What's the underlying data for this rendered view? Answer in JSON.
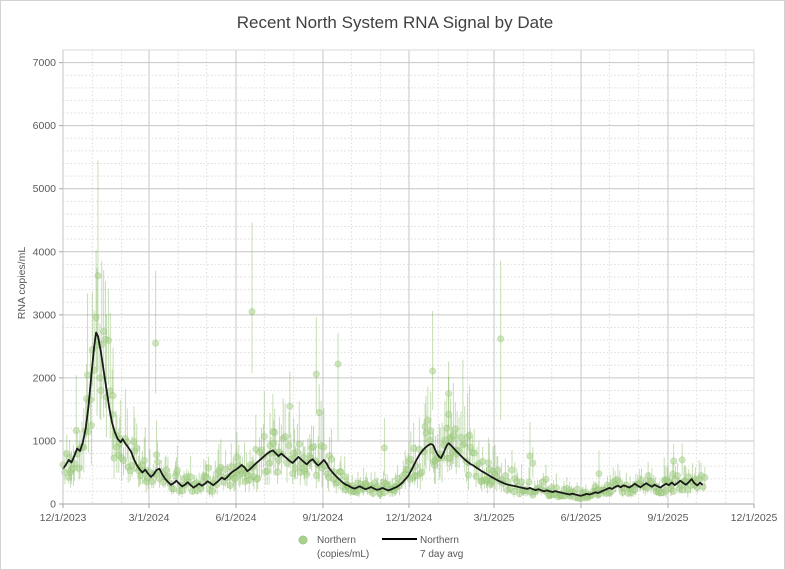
{
  "chart_data": {
    "type": "scatter",
    "title": "Recent North System RNA Signal by Date",
    "xlabel": "",
    "ylabel": "RNA copies/mL",
    "ylim": [
      0,
      7200
    ],
    "y_ticks": [
      "0",
      "1000",
      "2000",
      "3000",
      "4000",
      "5000",
      "6000",
      "7000"
    ],
    "y_tick_values": [
      0,
      1000,
      2000,
      3000,
      4000,
      5000,
      6000,
      7000
    ],
    "y_minor_step": 200,
    "grid": "on",
    "legend_position": "bottom-center",
    "x_range_days": 731,
    "x_start_date": "12/1/2023",
    "x_ticks": [
      "12/1/2023",
      "3/1/2024",
      "6/1/2024",
      "9/1/2024",
      "12/1/2024",
      "3/1/2025",
      "6/1/2025",
      "9/1/2025",
      "12/1/2025"
    ],
    "x_tick_days": [
      0,
      91,
      183,
      275,
      366,
      456,
      548,
      640,
      731
    ],
    "x_minor_days": [
      0,
      31,
      62,
      91,
      122,
      152,
      183,
      213,
      244,
      275,
      305,
      336,
      366,
      397,
      428,
      456,
      487,
      517,
      548,
      578,
      609,
      640,
      670,
      701,
      731
    ],
    "legend": [
      {
        "label_line1": "Northern",
        "label_line2": "(copies/mL)",
        "marker": "circle",
        "color": "#a9d18e"
      },
      {
        "label_line1": "Northern",
        "label_line2": "7 day avg",
        "marker": "line",
        "color": "#000000"
      }
    ],
    "colors": {
      "point_fill": "#a9d18e",
      "point_opacity": 0.55,
      "errorbar": "#70ad47",
      "errorbar_opacity": 0.4,
      "avg_line": "#1a1a1a",
      "major_grid": "#c6c6c6",
      "minor_grid": "#dcdcdc",
      "axis_line": "#a6a6a6",
      "title_text": "#404040",
      "tick_text": "#595959"
    },
    "series": [
      {
        "name": "Northern (copies/mL)",
        "kind": "scatter-with-errorbars",
        "sampling_note": "daily samples; band approx +/-40% around 7-day average",
        "gen": {
          "seed": 42,
          "end_day": 679,
          "noise_min": 0.6,
          "noise_span": 0.85,
          "bump_chance": 0.08,
          "bump_mult": 1.3,
          "bar_up_min": 0.28,
          "bar_up_span": 0.5,
          "bar_dn_min": 0.22,
          "bar_dn_span": 0.32,
          "tall_bar_chance": 0.045,
          "tall_bar_mult": 2.0,
          "v_max": 3750,
          "hi_max": 5450,
          "dot_radius": 3.2
        },
        "outliers_day_value_lo_hi": [
          [
            98,
            2550,
            1750,
            3700
          ],
          [
            200,
            3050,
            2080,
            4460
          ],
          [
            240,
            1550,
            1050,
            2100
          ],
          [
            268,
            2060,
            1450,
            2960
          ],
          [
            271,
            1450,
            1000,
            1900
          ],
          [
            291,
            2220,
            1000,
            2715
          ],
          [
            340,
            890,
            450,
            1360
          ],
          [
            391,
            2110,
            1490,
            3060
          ],
          [
            408,
            1750,
            1200,
            2260
          ],
          [
            463,
            2620,
            1330,
            3860
          ],
          [
            494,
            760,
            400,
            1300
          ],
          [
            497,
            650,
            420,
            900
          ],
          [
            567,
            480,
            250,
            850
          ],
          [
            646,
            680,
            400,
            950
          ],
          [
            655,
            700,
            450,
            960
          ]
        ]
      },
      {
        "name": "Northern 7 day avg",
        "kind": "line",
        "color": "#1a1a1a",
        "width": 1.8,
        "points_day_value": [
          [
            0,
            560
          ],
          [
            3,
            620
          ],
          [
            6,
            700
          ],
          [
            9,
            660
          ],
          [
            12,
            760
          ],
          [
            15,
            880
          ],
          [
            18,
            840
          ],
          [
            21,
            980
          ],
          [
            24,
            1200
          ],
          [
            27,
            1550
          ],
          [
            30,
            2050
          ],
          [
            33,
            2500
          ],
          [
            35,
            2720
          ],
          [
            37,
            2660
          ],
          [
            40,
            2420
          ],
          [
            43,
            2120
          ],
          [
            46,
            1820
          ],
          [
            49,
            1520
          ],
          [
            52,
            1280
          ],
          [
            55,
            1130
          ],
          [
            58,
            1030
          ],
          [
            61,
            980
          ],
          [
            63,
            1030
          ],
          [
            66,
            960
          ],
          [
            69,
            900
          ],
          [
            72,
            830
          ],
          [
            75,
            710
          ],
          [
            78,
            620
          ],
          [
            81,
            550
          ],
          [
            84,
            500
          ],
          [
            87,
            545
          ],
          [
            90,
            480
          ],
          [
            93,
            430
          ],
          [
            96,
            470
          ],
          [
            99,
            540
          ],
          [
            102,
            560
          ],
          [
            105,
            470
          ],
          [
            108,
            400
          ],
          [
            111,
            350
          ],
          [
            114,
            305
          ],
          [
            117,
            330
          ],
          [
            120,
            370
          ],
          [
            123,
            320
          ],
          [
            126,
            280
          ],
          [
            129,
            305
          ],
          [
            132,
            345
          ],
          [
            135,
            300
          ],
          [
            138,
            260
          ],
          [
            141,
            290
          ],
          [
            144,
            320
          ],
          [
            147,
            290
          ],
          [
            150,
            320
          ],
          [
            153,
            360
          ],
          [
            156,
            330
          ],
          [
            159,
            300
          ],
          [
            162,
            335
          ],
          [
            165,
            375
          ],
          [
            168,
            420
          ],
          [
            171,
            390
          ],
          [
            174,
            430
          ],
          [
            177,
            480
          ],
          [
            180,
            520
          ],
          [
            183,
            545
          ],
          [
            186,
            580
          ],
          [
            189,
            620
          ],
          [
            192,
            580
          ],
          [
            195,
            520
          ],
          [
            198,
            555
          ],
          [
            201,
            600
          ],
          [
            204,
            640
          ],
          [
            207,
            680
          ],
          [
            210,
            720
          ],
          [
            213,
            760
          ],
          [
            216,
            800
          ],
          [
            219,
            830
          ],
          [
            222,
            850
          ],
          [
            225,
            805
          ],
          [
            228,
            760
          ],
          [
            231,
            800
          ],
          [
            234,
            760
          ],
          [
            237,
            720
          ],
          [
            240,
            680
          ],
          [
            243,
            650
          ],
          [
            246,
            700
          ],
          [
            249,
            745
          ],
          [
            252,
            705
          ],
          [
            255,
            665
          ],
          [
            258,
            630
          ],
          [
            261,
            680
          ],
          [
            264,
            710
          ],
          [
            267,
            655
          ],
          [
            270,
            610
          ],
          [
            273,
            650
          ],
          [
            276,
            700
          ],
          [
            279,
            640
          ],
          [
            281,
            580
          ],
          [
            284,
            520
          ],
          [
            287,
            470
          ],
          [
            290,
            425
          ],
          [
            293,
            380
          ],
          [
            296,
            340
          ],
          [
            299,
            310
          ],
          [
            302,
            290
          ],
          [
            305,
            265
          ],
          [
            308,
            245
          ],
          [
            311,
            260
          ],
          [
            314,
            280
          ],
          [
            317,
            255
          ],
          [
            320,
            235
          ],
          [
            323,
            250
          ],
          [
            326,
            270
          ],
          [
            329,
            245
          ],
          [
            332,
            225
          ],
          [
            335,
            235
          ],
          [
            338,
            255
          ],
          [
            341,
            235
          ],
          [
            344,
            215
          ],
          [
            347,
            230
          ],
          [
            350,
            250
          ],
          [
            353,
            270
          ],
          [
            356,
            300
          ],
          [
            359,
            340
          ],
          [
            362,
            390
          ],
          [
            365,
            440
          ],
          [
            368,
            520
          ],
          [
            371,
            610
          ],
          [
            374,
            700
          ],
          [
            377,
            780
          ],
          [
            380,
            840
          ],
          [
            383,
            890
          ],
          [
            386,
            930
          ],
          [
            388,
            945
          ],
          [
            390,
            950
          ],
          [
            392,
            925
          ],
          [
            394,
            850
          ],
          [
            396,
            790
          ],
          [
            398,
            750
          ],
          [
            400,
            730
          ],
          [
            402,
            790
          ],
          [
            404,
            860
          ],
          [
            406,
            930
          ],
          [
            408,
            965
          ],
          [
            410,
            935
          ],
          [
            413,
            890
          ],
          [
            416,
            840
          ],
          [
            419,
            795
          ],
          [
            422,
            750
          ],
          [
            425,
            705
          ],
          [
            428,
            670
          ],
          [
            431,
            635
          ],
          [
            434,
            610
          ],
          [
            437,
            580
          ],
          [
            440,
            550
          ],
          [
            443,
            520
          ],
          [
            446,
            495
          ],
          [
            449,
            470
          ],
          [
            452,
            440
          ],
          [
            455,
            415
          ],
          [
            458,
            390
          ],
          [
            461,
            365
          ],
          [
            464,
            345
          ],
          [
            467,
            325
          ],
          [
            470,
            310
          ],
          [
            473,
            300
          ],
          [
            476,
            290
          ],
          [
            479,
            280
          ],
          [
            482,
            270
          ],
          [
            485,
            260
          ],
          [
            488,
            250
          ],
          [
            491,
            240
          ],
          [
            494,
            255
          ],
          [
            497,
            235
          ],
          [
            500,
            220
          ],
          [
            503,
            235
          ],
          [
            506,
            215
          ],
          [
            509,
            200
          ],
          [
            512,
            215
          ],
          [
            515,
            200
          ],
          [
            518,
            190
          ],
          [
            521,
            205
          ],
          [
            524,
            190
          ],
          [
            527,
            180
          ],
          [
            530,
            170
          ],
          [
            533,
            160
          ],
          [
            536,
            150
          ],
          [
            539,
            165
          ],
          [
            542,
            150
          ],
          [
            545,
            140
          ],
          [
            548,
            130
          ],
          [
            551,
            145
          ],
          [
            554,
            160
          ],
          [
            557,
            150
          ],
          [
            560,
            165
          ],
          [
            563,
            185
          ],
          [
            566,
            175
          ],
          [
            569,
            195
          ],
          [
            572,
            215
          ],
          [
            575,
            235
          ],
          [
            578,
            255
          ],
          [
            581,
            240
          ],
          [
            584,
            270
          ],
          [
            587,
            290
          ],
          [
            590,
            265
          ],
          [
            593,
            295
          ],
          [
            596,
            280
          ],
          [
            599,
            260
          ],
          [
            602,
            290
          ],
          [
            605,
            320
          ],
          [
            608,
            290
          ],
          [
            611,
            265
          ],
          [
            614,
            300
          ],
          [
            617,
            330
          ],
          [
            620,
            300
          ],
          [
            623,
            275
          ],
          [
            626,
            305
          ],
          [
            629,
            280
          ],
          [
            632,
            260
          ],
          [
            635,
            295
          ],
          [
            638,
            320
          ],
          [
            641,
            300
          ],
          [
            644,
            340
          ],
          [
            647,
            300
          ],
          [
            650,
            330
          ],
          [
            653,
            370
          ],
          [
            656,
            335
          ],
          [
            659,
            305
          ],
          [
            662,
            345
          ],
          [
            665,
            395
          ],
          [
            668,
            330
          ],
          [
            671,
            295
          ],
          [
            674,
            340
          ],
          [
            676,
            310
          ]
        ]
      }
    ]
  }
}
